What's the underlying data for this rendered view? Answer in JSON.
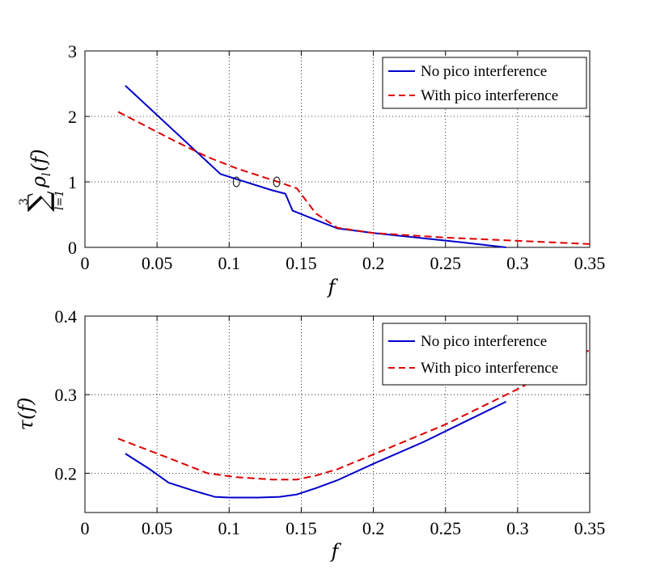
{
  "chart_data": [
    {
      "type": "line",
      "xlabel": "f",
      "ylabel": "∑_{l=1}^{3} ρ_l(f)",
      "ylabel_parts": {
        "sum": "∑",
        "upper": "3",
        "lower": "l=1",
        "term": "ρ",
        "sub": "l",
        "arg": "(f)"
      },
      "xlim": [
        0,
        0.35
      ],
      "ylim": [
        0,
        3
      ],
      "xticks": [
        0,
        0.05,
        0.1,
        0.15,
        0.2,
        0.25,
        0.3,
        0.35
      ],
      "xtick_labels": [
        "0",
        "0.05",
        "0.1",
        "0.15",
        "0.2",
        "0.25",
        "0.3",
        "0.35"
      ],
      "yticks": [
        0,
        1,
        2,
        3
      ],
      "ytick_labels": [
        "0",
        "1",
        "2",
        "3"
      ],
      "grid": true,
      "legend_position": "top-right",
      "series": [
        {
          "name": "No pico interference",
          "color": "#0000cc",
          "style": "solid",
          "x": [
            0.028,
            0.094,
            0.13,
            0.139,
            0.144,
            0.175,
            0.2,
            0.23,
            0.26,
            0.292
          ],
          "y": [
            2.47,
            1.12,
            0.87,
            0.82,
            0.56,
            0.29,
            0.22,
            0.15,
            0.08,
            0.0
          ]
        },
        {
          "name": "With pico interference",
          "color": "#dd0000",
          "style": "dashed",
          "x": [
            0.023,
            0.06,
            0.085,
            0.106,
            0.134,
            0.147,
            0.16,
            0.175,
            0.2,
            0.25,
            0.3,
            0.35
          ],
          "y": [
            2.07,
            1.65,
            1.38,
            1.2,
            1.0,
            0.9,
            0.52,
            0.3,
            0.22,
            0.15,
            0.1,
            0.05
          ]
        }
      ],
      "markers": [
        {
          "x": 0.105,
          "y": 1.0,
          "shape": "circle"
        },
        {
          "x": 0.133,
          "y": 1.0,
          "shape": "circle"
        }
      ]
    },
    {
      "type": "line",
      "xlabel": "f",
      "ylabel": "τ(f)",
      "xlim": [
        0,
        0.35
      ],
      "ylim": [
        0.15,
        0.4
      ],
      "xticks": [
        0,
        0.05,
        0.1,
        0.15,
        0.2,
        0.25,
        0.3,
        0.35
      ],
      "xtick_labels": [
        "0",
        "0.05",
        "0.1",
        "0.15",
        "0.2",
        "0.25",
        "0.3",
        "0.35"
      ],
      "yticks": [
        0.2,
        0.3,
        0.4
      ],
      "ytick_labels": [
        "0.2",
        "0.3",
        "0.4"
      ],
      "grid": true,
      "legend_position": "top-right",
      "series": [
        {
          "name": "No pico interference",
          "color": "#0000cc",
          "style": "solid",
          "x": [
            0.028,
            0.045,
            0.058,
            0.075,
            0.09,
            0.1,
            0.12,
            0.135,
            0.147,
            0.16,
            0.175,
            0.2,
            0.235,
            0.265,
            0.292
          ],
          "y": [
            0.225,
            0.205,
            0.188,
            0.178,
            0.17,
            0.169,
            0.169,
            0.17,
            0.173,
            0.181,
            0.191,
            0.212,
            0.24,
            0.267,
            0.291
          ]
        },
        {
          "name": "With pico interference",
          "color": "#dd0000",
          "style": "dashed",
          "x": [
            0.023,
            0.06,
            0.085,
            0.105,
            0.13,
            0.147,
            0.16,
            0.175,
            0.2,
            0.25,
            0.3,
            0.35
          ],
          "y": [
            0.244,
            0.218,
            0.2,
            0.195,
            0.192,
            0.192,
            0.197,
            0.205,
            0.224,
            0.262,
            0.307,
            0.357
          ]
        }
      ]
    }
  ]
}
